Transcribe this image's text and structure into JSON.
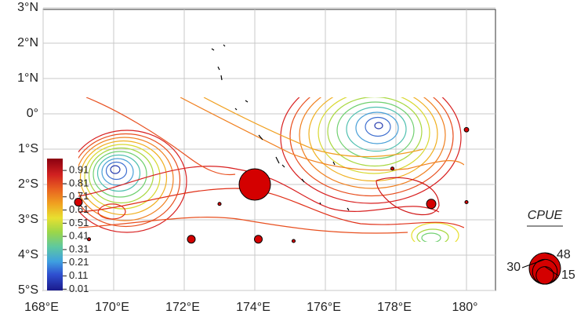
{
  "chart_data": {
    "type": "bubble-map",
    "xlim": [
      168,
      180.8
    ],
    "ylim": [
      -5,
      3
    ],
    "xticks": [
      {
        "value": 168,
        "label": "168°E"
      },
      {
        "value": 170,
        "label": "170°E"
      },
      {
        "value": 172,
        "label": "172°E"
      },
      {
        "value": 174,
        "label": "174°E"
      },
      {
        "value": 176,
        "label": "176°E"
      },
      {
        "value": 178,
        "label": "178°E"
      },
      {
        "value": 180,
        "label": "180°"
      }
    ],
    "yticks": [
      {
        "value": 3,
        "label": "3°N"
      },
      {
        "value": 2,
        "label": "2°N"
      },
      {
        "value": 1,
        "label": "1°N"
      },
      {
        "value": 0,
        "label": "0°"
      },
      {
        "value": -1,
        "label": "1°S"
      },
      {
        "value": -2,
        "label": "2°S"
      },
      {
        "value": -3,
        "label": "3°S"
      },
      {
        "value": -4,
        "label": "4°S"
      },
      {
        "value": -5,
        "label": "5°S"
      }
    ],
    "grid": true,
    "color": "#d40000",
    "points": {
      "x": [
        174.0,
        169.0,
        172.2,
        174.1,
        179.0,
        180.0,
        173.0,
        169.3,
        175.1,
        177.9,
        180.0
      ],
      "y": [
        -2.0,
        -2.5,
        -3.55,
        -3.55,
        -2.55,
        -0.45,
        -2.55,
        -3.55,
        -3.6,
        -1.55,
        -2.5
      ],
      "values": [
        48,
        3,
        3,
        3,
        4.3,
        1,
        0.5,
        0.5,
        0.5,
        0.5,
        0.5
      ]
    },
    "colorbar": {
      "lim": [
        0,
        1
      ],
      "ticks": [
        0.01,
        0.11,
        0.21,
        0.31,
        0.41,
        0.51,
        0.61,
        0.71,
        0.81,
        0.91
      ]
    },
    "legend": {
      "title": "CPUE",
      "sizes": [
        48,
        30,
        15
      ]
    }
  }
}
